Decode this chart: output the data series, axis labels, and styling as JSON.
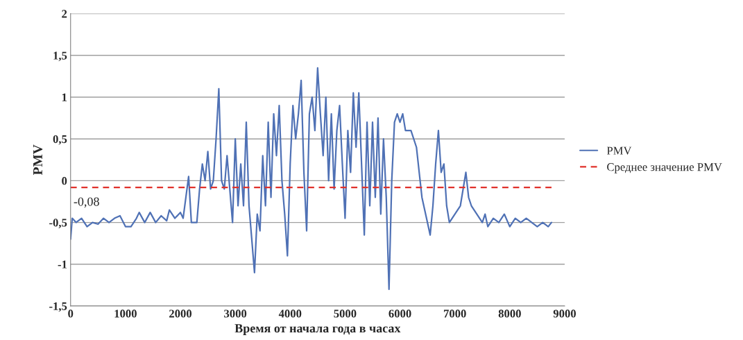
{
  "chart_data": {
    "type": "line",
    "xlabel": "Время от начала года в часах",
    "ylabel": "PMV",
    "xlim": [
      0,
      9000
    ],
    "xticks": [
      0,
      1000,
      2000,
      3000,
      4000,
      5000,
      6000,
      7000,
      8000,
      9000
    ],
    "ylim": [
      -1.5,
      2
    ],
    "yticks": [
      {
        "value": -1.5,
        "label": "-1,5"
      },
      {
        "value": -1,
        "label": "-1"
      },
      {
        "value": -0.5,
        "label": "-0,5"
      },
      {
        "value": 0,
        "label": "0"
      },
      {
        "value": 0.5,
        "label": "0,5"
      },
      {
        "value": 1,
        "label": "1"
      },
      {
        "value": 1.5,
        "label": "1,5"
      },
      {
        "value": 2,
        "label": "2"
      }
    ],
    "grid": "y",
    "legend": "right",
    "marker": "none",
    "annotations": [
      {
        "text": "-0,08",
        "x": 0,
        "y": -0.08
      }
    ],
    "series": [
      {
        "name": "PMV",
        "color": "#4f71b5",
        "line_style": "solid",
        "x": [
          0,
          30,
          100,
          200,
          300,
          400,
          500,
          600,
          700,
          800,
          900,
          1000,
          1100,
          1200,
          1250,
          1350,
          1450,
          1550,
          1650,
          1750,
          1800,
          1900,
          2000,
          2050,
          2150,
          2200,
          2300,
          2350,
          2400,
          2450,
          2500,
          2550,
          2600,
          2650,
          2700,
          2750,
          2800,
          2850,
          2950,
          3000,
          3050,
          3100,
          3150,
          3200,
          3250,
          3300,
          3350,
          3400,
          3450,
          3500,
          3550,
          3600,
          3650,
          3700,
          3750,
          3800,
          3850,
          3900,
          3950,
          4000,
          4050,
          4100,
          4150,
          4200,
          4250,
          4300,
          4350,
          4400,
          4450,
          4500,
          4550,
          4600,
          4650,
          4700,
          4750,
          4800,
          4850,
          4900,
          4950,
          5000,
          5050,
          5100,
          5150,
          5200,
          5250,
          5300,
          5350,
          5400,
          5450,
          5500,
          5550,
          5600,
          5650,
          5700,
          5750,
          5800,
          5850,
          5900,
          5950,
          6000,
          6050,
          6100,
          6200,
          6300,
          6400,
          6500,
          6550,
          6600,
          6650,
          6700,
          6750,
          6800,
          6850,
          6900,
          7000,
          7100,
          7200,
          7250,
          7300,
          7400,
          7500,
          7550,
          7600,
          7700,
          7800,
          7900,
          8000,
          8100,
          8200,
          8300,
          8400,
          8500,
          8600,
          8700,
          8760
        ],
        "values": [
          -0.7,
          -0.45,
          -0.5,
          -0.45,
          -0.55,
          -0.5,
          -0.52,
          -0.45,
          -0.5,
          -0.45,
          -0.42,
          -0.55,
          -0.55,
          -0.45,
          -0.38,
          -0.5,
          -0.38,
          -0.5,
          -0.42,
          -0.48,
          -0.35,
          -0.45,
          -0.38,
          -0.45,
          0.05,
          -0.5,
          -0.5,
          -0.1,
          0.2,
          0.0,
          0.35,
          -0.1,
          0.0,
          0.5,
          1.1,
          0.0,
          -0.1,
          0.3,
          -0.5,
          0.5,
          -0.3,
          0.2,
          -0.3,
          0.7,
          -0.3,
          -0.7,
          -1.1,
          -0.4,
          -0.6,
          0.3,
          -0.3,
          0.7,
          -0.2,
          0.8,
          0.3,
          0.9,
          0.0,
          -0.4,
          -0.9,
          0.2,
          0.9,
          0.5,
          0.8,
          1.2,
          0.1,
          -0.6,
          0.8,
          1.0,
          0.6,
          1.35,
          0.8,
          0.3,
          1.0,
          0.0,
          0.8,
          -0.1,
          0.6,
          0.9,
          0.2,
          -0.45,
          0.6,
          0.1,
          1.05,
          0.4,
          1.05,
          0.2,
          -0.65,
          0.7,
          -0.3,
          0.7,
          -0.2,
          0.75,
          -0.4,
          0.5,
          -0.2,
          -1.3,
          0.0,
          0.7,
          0.8,
          0.7,
          0.8,
          0.6,
          0.6,
          0.4,
          -0.2,
          -0.5,
          -0.65,
          -0.3,
          0.2,
          0.6,
          0.1,
          0.2,
          -0.3,
          -0.5,
          -0.4,
          -0.3,
          0.1,
          -0.2,
          -0.3,
          -0.4,
          -0.5,
          -0.4,
          -0.55,
          -0.45,
          -0.5,
          -0.4,
          -0.55,
          -0.45,
          -0.5,
          -0.45,
          -0.5,
          -0.55,
          -0.5,
          -0.55,
          -0.5
        ]
      },
      {
        "name": "Среднее значение PMV",
        "color": "#e0302a",
        "line_style": "dashed",
        "x": [
          0,
          8760
        ],
        "values": [
          -0.08,
          -0.08
        ]
      }
    ]
  }
}
